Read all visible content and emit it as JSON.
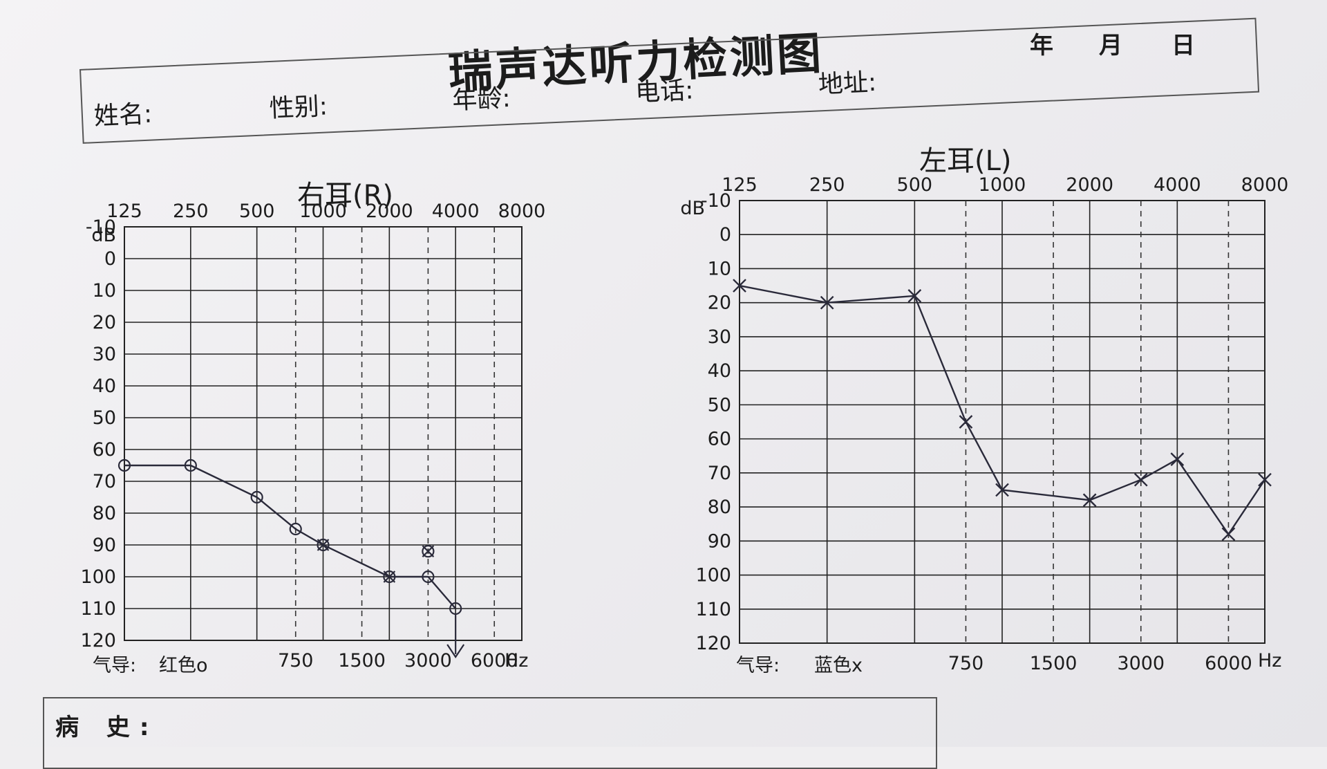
{
  "header": {
    "title": "瑞声达听力检测图",
    "date_year": "年",
    "date_month": "月",
    "date_day": "日"
  },
  "info_fields": {
    "name": "姓名:",
    "gender": "性别:",
    "age": "年龄:",
    "phone": "电话:",
    "address": "地址:"
  },
  "history_label": "病 史:",
  "charts": [
    {
      "ear_title": "右耳(R)",
      "db_unit": "dB",
      "top_freqs": [
        "125",
        "250",
        "500",
        "1000",
        "2000",
        "4000",
        "8000"
      ],
      "bottom_freqs": [
        "750",
        "1500",
        "3000",
        "6000"
      ],
      "hz_unit": "Hz",
      "legend_label": "气导:",
      "legend_color": "红色o",
      "db_ticks": [
        "-10",
        "0",
        "10",
        "20",
        "30",
        "40",
        "50",
        "60",
        "70",
        "80",
        "90",
        "100",
        "110",
        "120"
      ]
    },
    {
      "ear_title": "左耳(L)",
      "db_unit": "dB",
      "top_freqs": [
        "125",
        "250",
        "500",
        "1000",
        "2000",
        "4000",
        "8000"
      ],
      "bottom_freqs": [
        "750",
        "1500",
        "3000",
        "6000"
      ],
      "hz_unit": "Hz",
      "legend_label": "气导:",
      "legend_color": "蓝色x",
      "db_ticks": [
        "-10",
        "0",
        "10",
        "20",
        "30",
        "40",
        "50",
        "60",
        "70",
        "80",
        "90",
        "100",
        "110",
        "120"
      ]
    }
  ],
  "chart_data": [
    {
      "type": "line",
      "title": "右耳(R)",
      "xlabel": "Hz",
      "ylabel": "dB",
      "x_scale": "log",
      "y_inverted": true,
      "ylim": [
        -10,
        120
      ],
      "grid": true,
      "series": [
        {
          "name": "气导 红色o",
          "marker": "o",
          "x": [
            125,
            250,
            500,
            750,
            1000,
            2000,
            3000,
            4000
          ],
          "y": [
            65,
            65,
            75,
            85,
            90,
            100,
            100,
            110
          ]
        }
      ],
      "extra_marks": [
        {
          "x": 1000,
          "y": 90,
          "marker": "x"
        },
        {
          "x": 2000,
          "y": 100,
          "marker": "x"
        },
        {
          "x": 3000,
          "y": 92,
          "marker": "circle-x"
        },
        {
          "x": 4000,
          "y": 110,
          "marker": "down-arrow"
        }
      ]
    },
    {
      "type": "line",
      "title": "左耳(L)",
      "xlabel": "Hz",
      "ylabel": "dB",
      "x_scale": "log",
      "y_inverted": true,
      "ylim": [
        -10,
        120
      ],
      "grid": true,
      "series": [
        {
          "name": "气导 蓝色x",
          "marker": "x",
          "x": [
            125,
            250,
            500,
            750,
            1000,
            2000,
            3000,
            4000,
            6000,
            8000
          ],
          "y": [
            15,
            20,
            18,
            55,
            75,
            78,
            72,
            66,
            88,
            72
          ]
        }
      ]
    }
  ]
}
